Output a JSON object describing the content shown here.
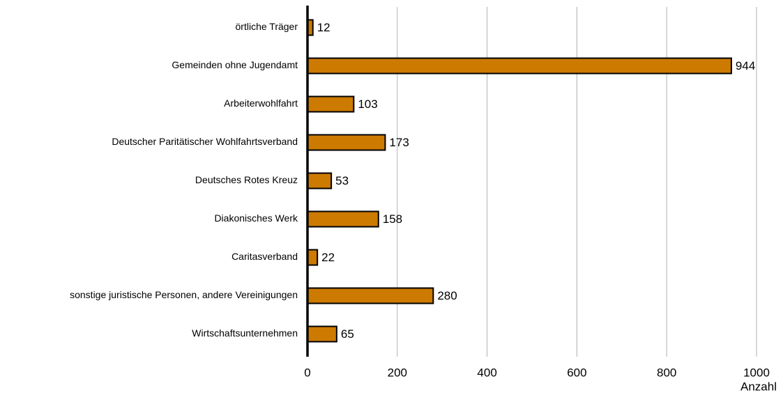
{
  "chart_data": {
    "type": "bar",
    "horizontal": true,
    "categories": [
      "örtliche Träger",
      "Gemeinden ohne Jugendamt",
      "Arbeiterwohlfahrt",
      "Deutscher Paritätischer Wohlfahrtsverband",
      "Deutsches Rotes Kreuz",
      "Diakonisches Werk",
      "Caritasverband",
      "sonstige juristische Personen, andere Vereinigungen",
      "Wirtschaftsunternehmen"
    ],
    "values": [
      12,
      944,
      103,
      173,
      53,
      158,
      22,
      280,
      65
    ],
    "color": "#cc7a00",
    "xlim": [
      0,
      1000
    ],
    "xticks": [
      0,
      200,
      400,
      600,
      800,
      1000
    ],
    "x_label": "Anzahl",
    "grid": true
  }
}
